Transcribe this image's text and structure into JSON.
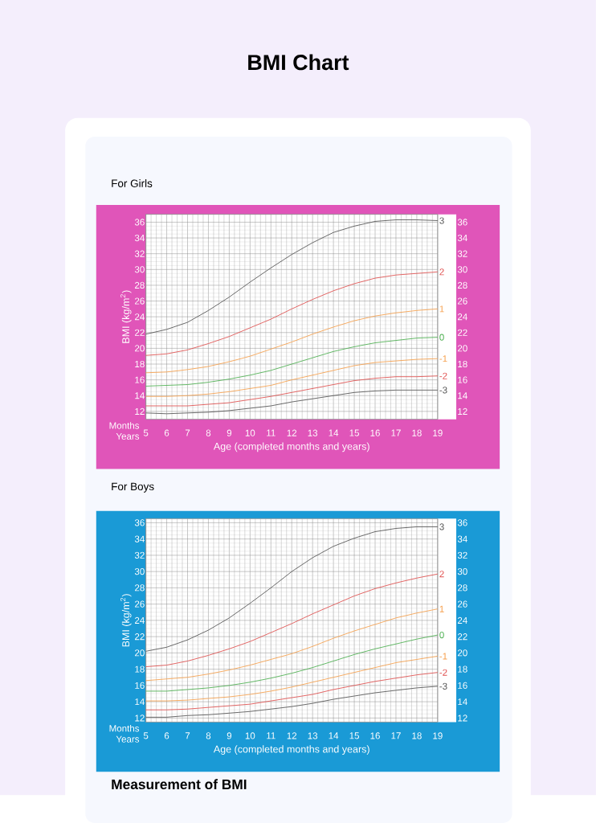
{
  "chart_data": [
    {
      "type": "line",
      "title": "BMI Chart",
      "subtitle": "For Girls",
      "xlabel": "Age (completed months and years)",
      "ylabel": "BMI (kg/m$^{2}$)",
      "x": [
        5,
        6,
        7,
        8,
        9,
        10,
        11,
        12,
        13,
        14,
        15,
        16,
        17,
        18,
        19
      ],
      "series": [
        {
          "name": "3",
          "color": "#555555",
          "values": [
            21.8,
            22.4,
            23.3,
            24.8,
            26.5,
            28.4,
            30.2,
            31.9,
            33.4,
            34.7,
            35.5,
            36.1,
            36.3,
            36.3,
            36.2
          ]
        },
        {
          "name": "2",
          "color": "#e0504f",
          "values": [
            19.1,
            19.3,
            19.8,
            20.6,
            21.5,
            22.6,
            23.7,
            25.0,
            26.2,
            27.3,
            28.2,
            28.9,
            29.3,
            29.5,
            29.7
          ]
        },
        {
          "name": "1",
          "color": "#f6a04d",
          "values": [
            16.9,
            17.0,
            17.3,
            17.7,
            18.3,
            19.0,
            19.9,
            20.8,
            21.8,
            22.7,
            23.5,
            24.1,
            24.5,
            24.8,
            25.0
          ]
        },
        {
          "name": "0",
          "color": "#4caf50",
          "values": [
            15.2,
            15.3,
            15.4,
            15.7,
            16.1,
            16.6,
            17.2,
            18.0,
            18.8,
            19.6,
            20.2,
            20.7,
            21.0,
            21.3,
            21.4
          ]
        },
        {
          "name": "-1",
          "color": "#f6a04d",
          "values": [
            13.9,
            13.9,
            14.0,
            14.2,
            14.5,
            14.9,
            15.3,
            16.0,
            16.6,
            17.2,
            17.8,
            18.2,
            18.4,
            18.6,
            18.7
          ]
        },
        {
          "name": "-2",
          "color": "#e0504f",
          "values": [
            12.7,
            12.7,
            12.7,
            12.9,
            13.1,
            13.5,
            13.9,
            14.4,
            14.9,
            15.4,
            15.9,
            16.2,
            16.4,
            16.4,
            16.5
          ]
        },
        {
          "name": "-3",
          "color": "#555555",
          "values": [
            11.8,
            11.7,
            11.8,
            11.9,
            12.1,
            12.4,
            12.7,
            13.2,
            13.6,
            14.0,
            14.4,
            14.6,
            14.7,
            14.7,
            14.7
          ]
        }
      ],
      "xlim": [
        5,
        19
      ],
      "xticks": [
        5,
        {
          "value": 5.25,
          "label": null
        },
        {
          "value": 5.5,
          "label": null
        },
        {
          "value": 5.75,
          "label": null
        },
        6,
        {
          "value": 6.25,
          "label": null
        },
        {
          "value": 6.5,
          "label": null
        },
        {
          "value": 6.75,
          "label": null
        },
        7,
        {
          "value": 7.25,
          "label": null
        },
        {
          "value": 7.5,
          "label": null
        },
        {
          "value": 7.75,
          "label": null
        },
        8,
        {
          "value": 8.25,
          "label": null
        },
        {
          "value": 8.5,
          "label": null
        },
        {
          "value": 8.75,
          "label": null
        },
        9,
        {
          "value": 9.25,
          "label": null
        },
        {
          "value": 9.5,
          "label": null
        },
        {
          "value": 9.75,
          "label": null
        },
        10,
        {
          "value": 10.25,
          "label": null
        },
        {
          "value": 10.5,
          "label": null
        },
        {
          "value": 10.75,
          "label": null
        },
        11,
        {
          "value": 11.25,
          "label": null
        },
        {
          "value": 11.5,
          "label": null
        },
        {
          "value": 11.75,
          "label": null
        },
        12,
        {
          "value": 12.25,
          "label": null
        },
        {
          "value": 12.5,
          "label": null
        },
        {
          "value": 12.75,
          "label": null
        },
        13,
        {
          "value": 13.25,
          "label": null
        },
        {
          "value": 13.5,
          "label": null
        },
        {
          "value": 13.75,
          "label": null
        },
        14,
        {
          "value": 14.25,
          "label": null
        },
        {
          "value": 14.5,
          "label": null
        },
        {
          "value": 14.75,
          "label": null
        },
        15,
        {
          "value": 15.25,
          "label": null
        },
        {
          "value": 15.5,
          "label": null
        },
        {
          "value": 15.75,
          "label": null
        },
        16,
        {
          "value": 16.25,
          "label": null
        },
        {
          "value": 16.5,
          "label": null
        },
        {
          "value": 16.75,
          "label": null
        },
        17,
        {
          "value": 17.25,
          "label": null
        },
        {
          "value": 17.5,
          "label": null
        },
        {
          "value": 17.75,
          "label": null
        },
        18,
        {
          "value": 18.25,
          "label": null
        },
        {
          "value": 18.5,
          "label": null
        },
        {
          "value": 18.75,
          "label": null
        },
        19
      ],
      "ylim": [
        11,
        37
      ],
      "yticks": [
        12,
        14,
        16,
        18,
        20,
        22,
        24,
        26,
        28,
        30,
        32,
        34,
        36
      ],
      "y2lim": [
        11,
        37
      ],
      "y2ticks": [
        12,
        14,
        16,
        18,
        20,
        22,
        24,
        26,
        28,
        30,
        32,
        34,
        36
      ],
      "grid": true,
      "annotations": [
        "Months",
        "Years"
      ]
    },
    {
      "type": "line",
      "title": "For Boys",
      "xlabel": "Age (completed months and years)",
      "ylabel": "BMI (kg/m$^{2}$)",
      "x": [
        5,
        6,
        7,
        8,
        9,
        10,
        11,
        12,
        13,
        14,
        15,
        16,
        17,
        18,
        19
      ],
      "series": [
        {
          "name": "3",
          "color": "#555555",
          "values": [
            20.2,
            20.7,
            21.6,
            22.8,
            24.3,
            26.1,
            28.0,
            30.0,
            31.7,
            33.1,
            34.1,
            34.9,
            35.3,
            35.5,
            35.5
          ]
        },
        {
          "name": "2",
          "color": "#e0504f",
          "values": [
            18.3,
            18.5,
            19.0,
            19.7,
            20.5,
            21.4,
            22.5,
            23.6,
            24.8,
            25.9,
            27.0,
            27.9,
            28.6,
            29.2,
            29.7
          ]
        },
        {
          "name": "1",
          "color": "#f6a04d",
          "values": [
            16.6,
            16.8,
            17.0,
            17.4,
            17.9,
            18.5,
            19.2,
            19.9,
            20.8,
            21.8,
            22.7,
            23.5,
            24.3,
            24.9,
            25.4
          ]
        },
        {
          "name": "0",
          "color": "#4caf50",
          "values": [
            15.3,
            15.3,
            15.5,
            15.7,
            16.0,
            16.4,
            16.9,
            17.5,
            18.2,
            19.0,
            19.8,
            20.5,
            21.1,
            21.7,
            22.2
          ]
        },
        {
          "name": "-1",
          "color": "#f6a04d",
          "values": [
            14.1,
            14.1,
            14.2,
            14.4,
            14.6,
            14.9,
            15.3,
            15.8,
            16.4,
            17.0,
            17.6,
            18.2,
            18.8,
            19.2,
            19.6
          ]
        },
        {
          "name": "-2",
          "color": "#e0504f",
          "values": [
            13.0,
            13.0,
            13.1,
            13.3,
            13.5,
            13.7,
            14.1,
            14.5,
            14.9,
            15.5,
            16.0,
            16.5,
            16.9,
            17.3,
            17.6
          ]
        },
        {
          "name": "-3",
          "color": "#555555",
          "values": [
            12.1,
            12.1,
            12.3,
            12.4,
            12.6,
            12.8,
            13.1,
            13.4,
            13.8,
            14.3,
            14.7,
            15.1,
            15.4,
            15.7,
            15.9
          ]
        }
      ],
      "xlim": [
        5,
        19
      ],
      "xticks": [
        5,
        {
          "value": 5.25,
          "label": null
        },
        {
          "value": 5.5,
          "label": null
        },
        {
          "value": 5.75,
          "label": null
        },
        6,
        {
          "value": 6.25,
          "label": null
        },
        {
          "value": 6.5,
          "label": null
        },
        {
          "value": 6.75,
          "label": null
        },
        7,
        {
          "value": 7.25,
          "label": null
        },
        {
          "value": 7.5,
          "label": null
        },
        {
          "value": 7.75,
          "label": null
        },
        8,
        {
          "value": 8.25,
          "label": null
        },
        {
          "value": 8.5,
          "label": null
        },
        {
          "value": 8.75,
          "label": null
        },
        9,
        {
          "value": 9.25,
          "label": null
        },
        {
          "value": 9.5,
          "label": null
        },
        {
          "value": 9.75,
          "label": null
        },
        10,
        {
          "value": 10.25,
          "label": null
        },
        {
          "value": 10.5,
          "label": null
        },
        {
          "value": 10.75,
          "label": null
        },
        11,
        {
          "value": 11.25,
          "label": null
        },
        {
          "value": 11.5,
          "label": null
        },
        {
          "value": 11.75,
          "label": null
        },
        12,
        {
          "value": 12.25,
          "label": null
        },
        {
          "value": 12.5,
          "label": null
        },
        {
          "value": 12.75,
          "label": null
        },
        13,
        {
          "value": 13.25,
          "label": null
        },
        {
          "value": 13.5,
          "label": null
        },
        {
          "value": 13.75,
          "label": null
        },
        14,
        {
          "value": 14.25,
          "label": null
        },
        {
          "value": 14.5,
          "label": null
        },
        {
          "value": 14.75,
          "label": null
        },
        15,
        {
          "value": 15.25,
          "label": null
        },
        {
          "value": 15.5,
          "label": null
        },
        {
          "value": 15.75,
          "label": null
        },
        16,
        {
          "value": 16.25,
          "label": null
        },
        {
          "value": 16.5,
          "label": null
        },
        {
          "value": 16.75,
          "label": null
        },
        17,
        {
          "value": 17.25,
          "label": null
        },
        {
          "value": 17.5,
          "label": null
        },
        {
          "value": 17.75,
          "label": null
        },
        18,
        {
          "value": 18.25,
          "label": null
        },
        {
          "value": 18.5,
          "label": null
        },
        {
          "value": 18.75,
          "label": null
        },
        19
      ],
      "ylim": [
        11.5,
        36.5
      ],
      "yticks": [
        12,
        14,
        16,
        18,
        20,
        22,
        24,
        26,
        28,
        30,
        32,
        34,
        36
      ],
      "y2lim": [
        11.5,
        36.5
      ],
      "y2ticks": [
        12,
        14,
        16,
        18,
        20,
        22,
        24,
        26,
        28,
        30,
        32,
        34,
        36
      ],
      "grid": true,
      "annotations": [
        "Months",
        "Years",
        "Measurement of BMI"
      ]
    }
  ]
}
